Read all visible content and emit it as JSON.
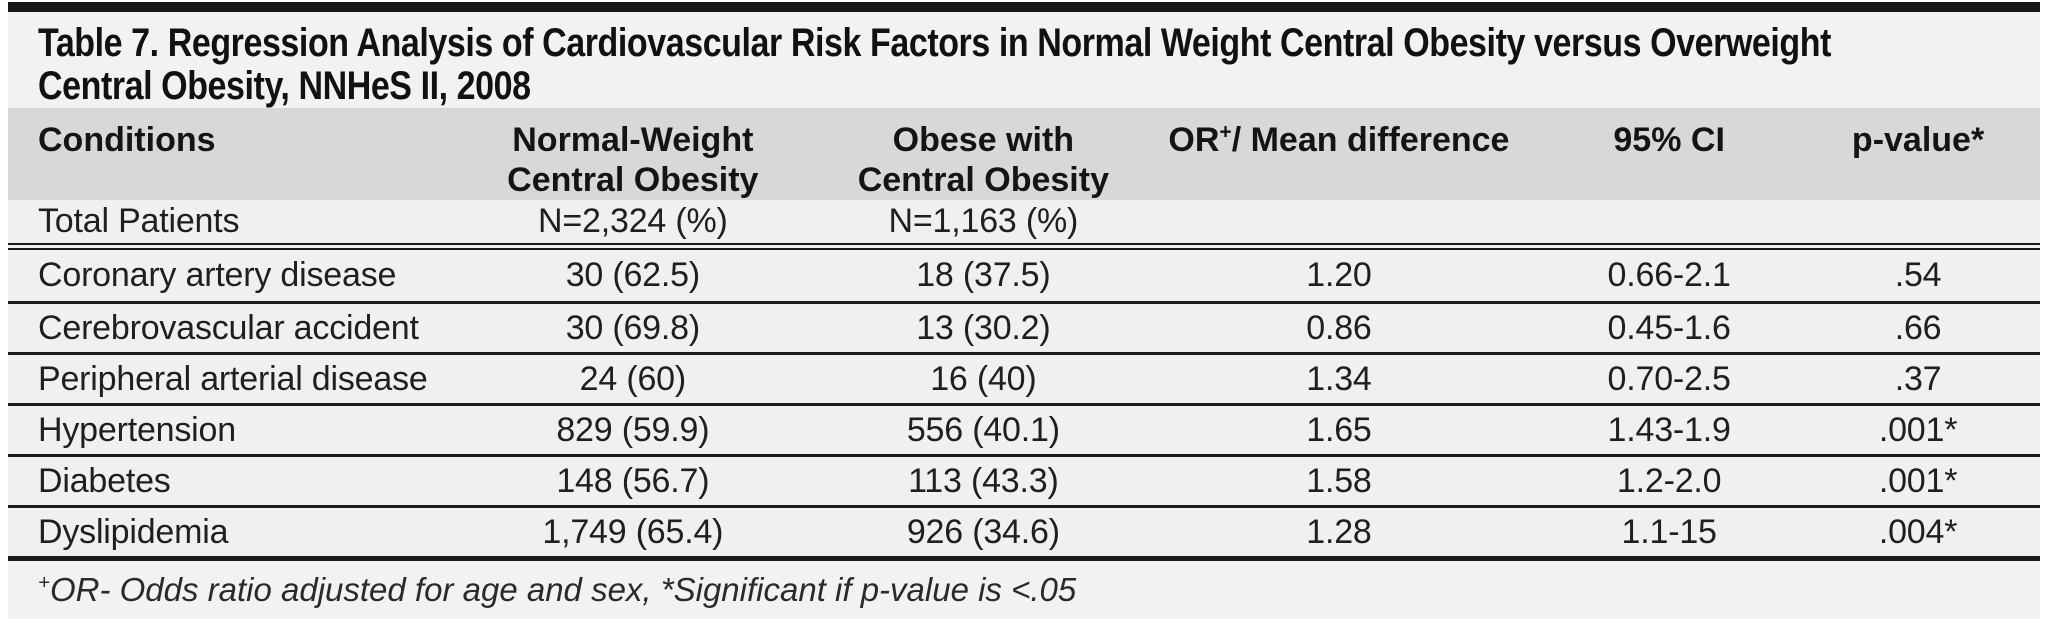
{
  "title": {
    "line1": "Table 7. Regression Analysis of Cardiovascular Risk Factors in Normal Weight Central Obesity versus Overweight",
    "line2": "Central Obesity, NNHeS II, 2008"
  },
  "columns": {
    "conditions": "Conditions",
    "col2_line1": "Normal-Weight",
    "col2_line2": "Central Obesity",
    "col3_line1": "Obese with",
    "col3_line2": "Central Obesity",
    "col4_pre": "OR",
    "col4_sup": "+",
    "col4_post": "/ Mean difference",
    "col5": "95% CI",
    "col6": "p-value*"
  },
  "total_row": {
    "label": "Total Patients",
    "normal_weight": "N=2,324 (%)",
    "obese": "N=1,163 (%)"
  },
  "rows": [
    {
      "condition": "Coronary artery disease",
      "normal_weight": "30 (62.5)",
      "obese": "18 (37.5)",
      "or": "1.20",
      "ci": "0.66-2.1",
      "p": ".54"
    },
    {
      "condition": "Cerebrovascular accident",
      "normal_weight": "30 (69.8)",
      "obese": "13 (30.2)",
      "or": "0.86",
      "ci": "0.45-1.6",
      "p": ".66"
    },
    {
      "condition": "Peripheral arterial disease",
      "normal_weight": "24 (60)",
      "obese": "16 (40)",
      "or": "1.34",
      "ci": "0.70-2.5",
      "p": ".37"
    },
    {
      "condition": "Hypertension",
      "normal_weight": "829 (59.9)",
      "obese": "556 (40.1)",
      "or": "1.65",
      "ci": "1.43-1.9",
      "p": ".001*"
    },
    {
      "condition": "Diabetes",
      "normal_weight": "148 (56.7)",
      "obese": "113 (43.3)",
      "or": "1.58",
      "ci": "1.2-2.0",
      "p": ".001*"
    },
    {
      "condition": "Dyslipidemia",
      "normal_weight": "1,749 (65.4)",
      "obese": "926 (34.6)",
      "or": "1.28",
      "ci": "1.1-15",
      "p": ".004*"
    }
  ],
  "footnote": {
    "sup": "+",
    "text": "OR- Odds ratio adjusted for age and sex, *Significant if p-value is <.05"
  },
  "colors": {
    "top_bar": "#181818",
    "title_band_bg": "#f2f2f2",
    "header_bg": "#d8d8d8",
    "row_bg": "#f0f0f0",
    "rule": "#1b1b1b"
  }
}
